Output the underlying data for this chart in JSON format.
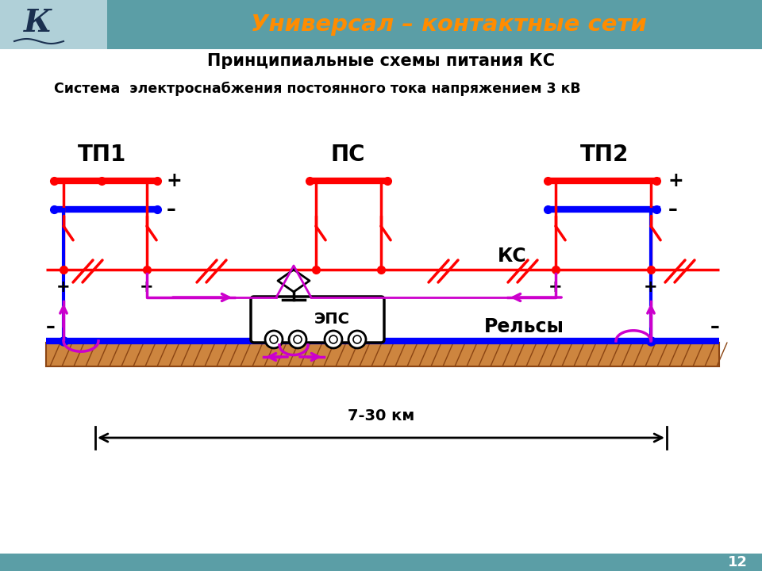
{
  "title_header": "Универсал – контактные сети",
  "title_main": "Принципиальные схемы питания КС",
  "title_sub": "Система  электроснабжения постоянного тока напряжением 3 кВ",
  "label_tp1": "ТП1",
  "label_tp2": "ТП2",
  "label_ps": "ПС",
  "label_ks": "КС",
  "label_eps": "ЭПС",
  "label_rails": "Рельсы",
  "label_dist": "7-30 км",
  "header_bg": "#5b9ea6",
  "header_text_color": "#ff8c00",
  "red": "#ff0000",
  "blue": "#0000ff",
  "magenta": "#cc00cc",
  "black": "#000000",
  "brown_fill": "#cd853f",
  "brown_hatch": "#8b4513",
  "page_num": "12"
}
